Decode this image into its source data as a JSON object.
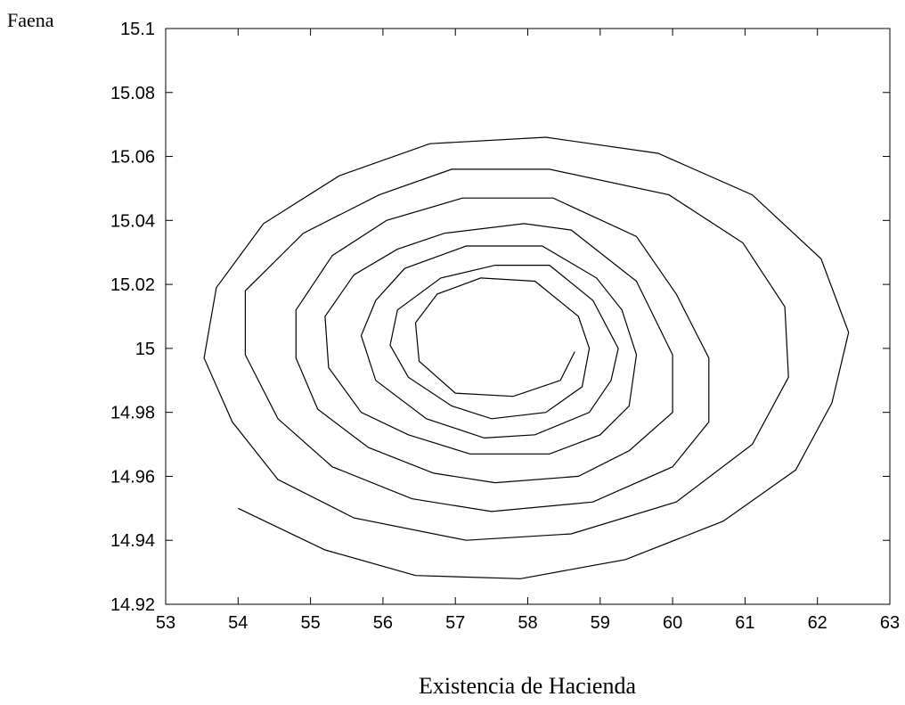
{
  "chart_data": {
    "type": "line",
    "title": "",
    "xlabel": "Existencia de Hacienda",
    "ylabel": "Faena",
    "xlim": [
      53,
      63
    ],
    "ylim": [
      14.92,
      15.1
    ],
    "grid": false,
    "x_ticks": [
      "53",
      "54",
      "55",
      "56",
      "57",
      "58",
      "59",
      "60",
      "61",
      "62",
      "63"
    ],
    "y_ticks": [
      "14.92",
      "14.94",
      "14.96",
      "14.98",
      "15",
      "15.02",
      "15.04",
      "15.06",
      "15.08",
      "15.1"
    ],
    "series": [
      {
        "color": "#000000",
        "points": [
          [
            54.0,
            14.95
          ],
          [
            55.2,
            14.937
          ],
          [
            56.45,
            14.929
          ],
          [
            57.9,
            14.928
          ],
          [
            59.35,
            14.934
          ],
          [
            60.7,
            14.946
          ],
          [
            61.7,
            14.962
          ],
          [
            62.2,
            14.983
          ],
          [
            62.43,
            15.005
          ],
          [
            62.05,
            15.028
          ],
          [
            61.1,
            15.048
          ],
          [
            59.8,
            15.061
          ],
          [
            58.25,
            15.066
          ],
          [
            56.65,
            15.064
          ],
          [
            55.4,
            15.054
          ],
          [
            54.35,
            15.039
          ],
          [
            53.7,
            15.019
          ],
          [
            53.53,
            14.997
          ],
          [
            53.92,
            14.977
          ],
          [
            54.55,
            14.959
          ],
          [
            55.6,
            14.947
          ],
          [
            57.15,
            14.94
          ],
          [
            58.6,
            14.942
          ],
          [
            60.05,
            14.952
          ],
          [
            61.1,
            14.97
          ],
          [
            61.6,
            14.991
          ],
          [
            61.55,
            15.013
          ],
          [
            60.97,
            15.033
          ],
          [
            59.95,
            15.048
          ],
          [
            58.3,
            15.056
          ],
          [
            56.95,
            15.056
          ],
          [
            55.95,
            15.048
          ],
          [
            54.9,
            15.036
          ],
          [
            54.1,
            15.018
          ],
          [
            54.1,
            14.998
          ],
          [
            54.55,
            14.978
          ],
          [
            55.3,
            14.963
          ],
          [
            56.4,
            14.953
          ],
          [
            57.5,
            14.949
          ],
          [
            58.9,
            14.952
          ],
          [
            60.0,
            14.963
          ],
          [
            60.5,
            14.977
          ],
          [
            60.5,
            14.997
          ],
          [
            60.05,
            15.017
          ],
          [
            59.5,
            15.035
          ],
          [
            58.35,
            15.047
          ],
          [
            57.1,
            15.047
          ],
          [
            56.05,
            15.04
          ],
          [
            55.3,
            15.029
          ],
          [
            54.8,
            15.012
          ],
          [
            54.8,
            14.997
          ],
          [
            55.1,
            14.981
          ],
          [
            55.8,
            14.969
          ],
          [
            56.7,
            14.961
          ],
          [
            57.55,
            14.958
          ],
          [
            58.7,
            14.96
          ],
          [
            59.4,
            14.968
          ],
          [
            60.0,
            14.98
          ],
          [
            60.0,
            14.998
          ],
          [
            59.5,
            15.021
          ],
          [
            58.6,
            15.037
          ],
          [
            57.95,
            15.039
          ],
          [
            56.85,
            15.036
          ],
          [
            56.2,
            15.031
          ],
          [
            55.6,
            15.023
          ],
          [
            55.2,
            15.01
          ],
          [
            55.25,
            14.994
          ],
          [
            55.7,
            14.98
          ],
          [
            56.35,
            14.973
          ],
          [
            57.2,
            14.967
          ],
          [
            58.3,
            14.967
          ],
          [
            59.0,
            14.973
          ],
          [
            59.4,
            14.982
          ],
          [
            59.5,
            14.998
          ],
          [
            59.3,
            15.012
          ],
          [
            58.95,
            15.022
          ],
          [
            58.2,
            15.032
          ],
          [
            57.15,
            15.032
          ],
          [
            56.3,
            15.025
          ],
          [
            55.9,
            15.015
          ],
          [
            55.7,
            15.004
          ],
          [
            55.9,
            14.99
          ],
          [
            56.6,
            14.978
          ],
          [
            57.4,
            14.972
          ],
          [
            58.1,
            14.973
          ],
          [
            58.85,
            14.98
          ],
          [
            59.15,
            14.99
          ],
          [
            59.25,
            15.0
          ],
          [
            58.9,
            15.015
          ],
          [
            58.3,
            15.026
          ],
          [
            57.55,
            15.026
          ],
          [
            56.8,
            15.022
          ],
          [
            56.2,
            15.012
          ],
          [
            56.1,
            15.001
          ],
          [
            56.35,
            14.991
          ],
          [
            56.95,
            14.982
          ],
          [
            57.5,
            14.978
          ],
          [
            58.25,
            14.98
          ],
          [
            58.75,
            14.988
          ],
          [
            58.85,
            15.0
          ],
          [
            58.7,
            15.01
          ],
          [
            58.1,
            15.021
          ],
          [
            57.35,
            15.022
          ],
          [
            56.75,
            15.017
          ],
          [
            56.45,
            15.008
          ],
          [
            56.5,
            14.996
          ],
          [
            57.0,
            14.986
          ],
          [
            57.8,
            14.985
          ],
          [
            58.45,
            14.99
          ],
          [
            58.65,
            14.999
          ]
        ]
      }
    ]
  }
}
